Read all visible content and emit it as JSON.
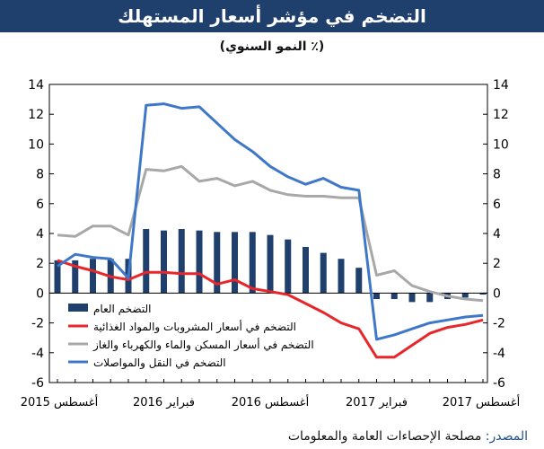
{
  "title": "التضخم في مؤشر أسعار المستهلك",
  "subtitle": "(٪ النمو السنوي)",
  "source": {
    "label": "المصدر:",
    "text": "مصلحة الإحصاءات العامة والمعلومات"
  },
  "colors": {
    "header_bg": "#1f3f6d",
    "general": "#1f3f6d",
    "food": "#e8262a",
    "housing": "#a8a8a8",
    "transport": "#3f78c8"
  },
  "chart_data": {
    "type": "bar+line",
    "ylim": [
      -6,
      14
    ],
    "yticks": [
      -6,
      -4,
      -2,
      0,
      2,
      4,
      6,
      8,
      10,
      12,
      14
    ],
    "xlabels": [
      {
        "label": "أغسطس 2015",
        "index": 0
      },
      {
        "label": "فبراير 2016",
        "index": 6
      },
      {
        "label": "أغسطس 2016",
        "index": 12
      },
      {
        "label": "فبراير 2017",
        "index": 18
      },
      {
        "label": "أغسطس 2017",
        "index": 24
      }
    ],
    "months": [
      "2015-08",
      "2015-09",
      "2015-10",
      "2015-11",
      "2015-12",
      "2016-01",
      "2016-02",
      "2016-03",
      "2016-04",
      "2016-05",
      "2016-06",
      "2016-07",
      "2016-08",
      "2016-09",
      "2016-10",
      "2016-11",
      "2016-12",
      "2017-01",
      "2017-02",
      "2017-03",
      "2017-04",
      "2017-05",
      "2017-06",
      "2017-07",
      "2017-08"
    ],
    "bars": {
      "name": "التضخم العام",
      "values": [
        2.2,
        2.2,
        2.3,
        2.3,
        2.3,
        4.3,
        4.2,
        4.3,
        4.2,
        4.1,
        4.1,
        4.1,
        3.9,
        3.6,
        3.1,
        2.7,
        2.3,
        1.7,
        -0.4,
        -0.4,
        -0.6,
        -0.6,
        -0.4,
        -0.3,
        -0.1
      ]
    },
    "series": [
      {
        "name": "التضخم في أسعار المشروبات والمواد الغذائية",
        "key": "food",
        "values": [
          2.2,
          1.8,
          1.5,
          1.1,
          0.9,
          1.4,
          1.4,
          1.3,
          1.3,
          0.6,
          0.9,
          0.3,
          0.1,
          -0.1,
          -0.7,
          -1.3,
          -2.0,
          -2.4,
          -4.3,
          -4.3,
          -3.5,
          -2.7,
          -2.3,
          -2.1,
          -1.8
        ]
      },
      {
        "name": "التضخم في أسعار المسكن والماء والكهرباء والغاز",
        "key": "housing",
        "values": [
          3.9,
          3.8,
          4.5,
          4.5,
          3.9,
          8.3,
          8.2,
          8.5,
          7.5,
          7.7,
          7.2,
          7.5,
          6.9,
          6.6,
          6.5,
          6.5,
          6.4,
          6.4,
          1.2,
          1.5,
          0.5,
          0.1,
          -0.2,
          -0.4,
          -0.5
        ]
      },
      {
        "name": "التضخم في النقل والمواصلات",
        "key": "transport",
        "values": [
          1.8,
          2.6,
          2.4,
          2.3,
          1.0,
          12.6,
          12.7,
          12.4,
          12.5,
          11.4,
          10.3,
          9.5,
          8.5,
          7.8,
          7.3,
          7.7,
          7.1,
          6.9,
          -3.1,
          -2.8,
          -2.4,
          -2.0,
          -1.8,
          -1.6,
          -1.5
        ]
      }
    ]
  }
}
